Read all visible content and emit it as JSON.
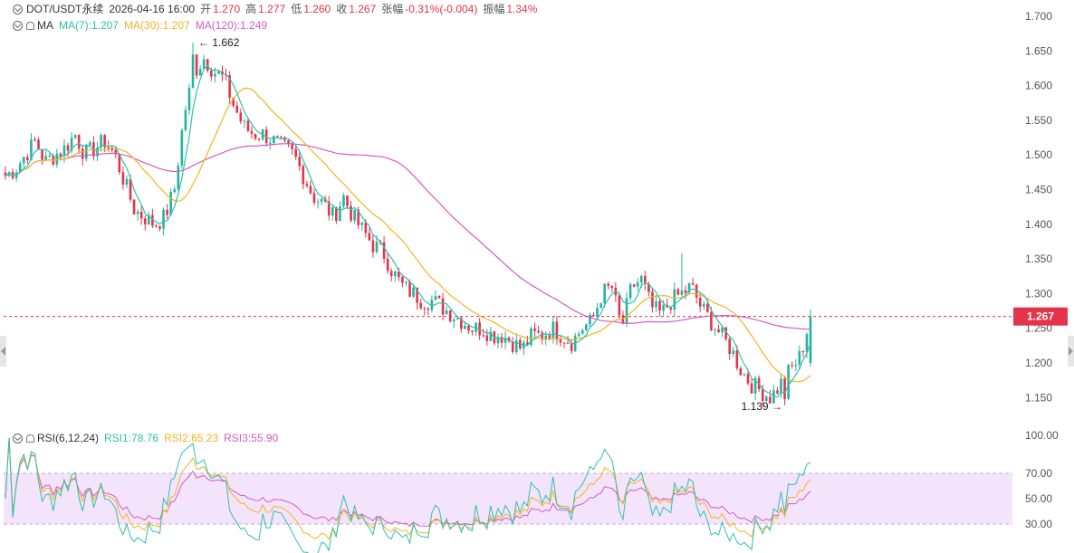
{
  "header": {
    "symbol": "DOT/USDT永续",
    "datetime": "2026-04-16 16:00",
    "open_label": "开",
    "open": "1.270",
    "high_label": "高",
    "high": "1.277",
    "low_label": "低",
    "low": "1.260",
    "close_label": "收",
    "close": "1.267",
    "change_label": "张幅",
    "change": "-0.31%(-0.004)",
    "amplitude_label": "振幅",
    "amplitude": "1.34%"
  },
  "ma_legend": {
    "name": "MA",
    "ma7": "MA(7):1.207",
    "ma30": "MA(30):1.207",
    "ma120": "MA(120):1.249"
  },
  "rsi_legend": {
    "name": "RSI(6,12,24)",
    "rsi1": "RSI1:78.76",
    "rsi2": "RSI2:65.23",
    "rsi3": "RSI3:55.90"
  },
  "annotations": {
    "high": "1.662",
    "low": "1.139"
  },
  "current_price": "1.267",
  "colors": {
    "up": "#26b39e",
    "down": "#e5334b",
    "ma7": "#2fc1ad",
    "ma30": "#f5b321",
    "ma120": "#d35bc8",
    "rsi1": "#2fc1ad",
    "rsi2": "#f5b321",
    "rsi3": "#d35bc8"
  },
  "chart_data": [
    {
      "type": "candlestick",
      "y_ticks": [
        "1.700",
        "1.650",
        "1.600",
        "1.550",
        "1.500",
        "1.450",
        "1.400",
        "1.350",
        "1.300",
        "1.250",
        "1.200",
        "1.150"
      ],
      "ylim": [
        1.13,
        1.72
      ],
      "current": 1.267,
      "extremes": {
        "high": 1.662,
        "low": 1.139
      },
      "close_path": [
        1.47,
        1.48,
        1.5,
        1.52,
        1.49,
        1.5,
        1.51,
        1.53,
        1.5,
        1.51,
        1.52,
        1.5,
        1.46,
        1.42,
        1.41,
        1.4,
        1.41,
        1.45,
        1.56,
        1.62,
        1.64,
        1.62,
        1.61,
        1.57,
        1.54,
        1.53,
        1.53,
        1.52,
        1.51,
        1.5,
        1.47,
        1.44,
        1.43,
        1.41,
        1.44,
        1.41,
        1.39,
        1.37,
        1.36,
        1.33,
        1.31,
        1.3,
        1.29,
        1.29,
        1.28,
        1.27,
        1.26,
        1.25,
        1.25,
        1.24,
        1.24,
        1.23,
        1.22,
        1.24,
        1.24,
        1.25,
        1.24,
        1.23,
        1.25,
        1.26,
        1.3,
        1.31,
        1.25,
        1.31,
        1.32,
        1.28,
        1.27,
        1.29,
        1.3,
        1.31,
        1.28,
        1.26,
        1.24,
        1.22,
        1.19,
        1.17,
        1.16,
        1.15,
        1.17,
        1.19,
        1.21,
        1.267
      ],
      "ma": {
        "ma7": 1.207,
        "ma30": 1.207,
        "ma120": 1.249
      }
    },
    {
      "type": "line",
      "series": [
        {
          "name": "RSI1",
          "last": 78.76
        },
        {
          "name": "RSI2",
          "last": 65.23
        },
        {
          "name": "RSI3",
          "last": 55.9
        }
      ],
      "y_ticks": [
        "100.00",
        "70.00",
        "50.00",
        "30.00"
      ],
      "ylim": [
        0,
        100
      ],
      "band": [
        30,
        70
      ]
    }
  ]
}
